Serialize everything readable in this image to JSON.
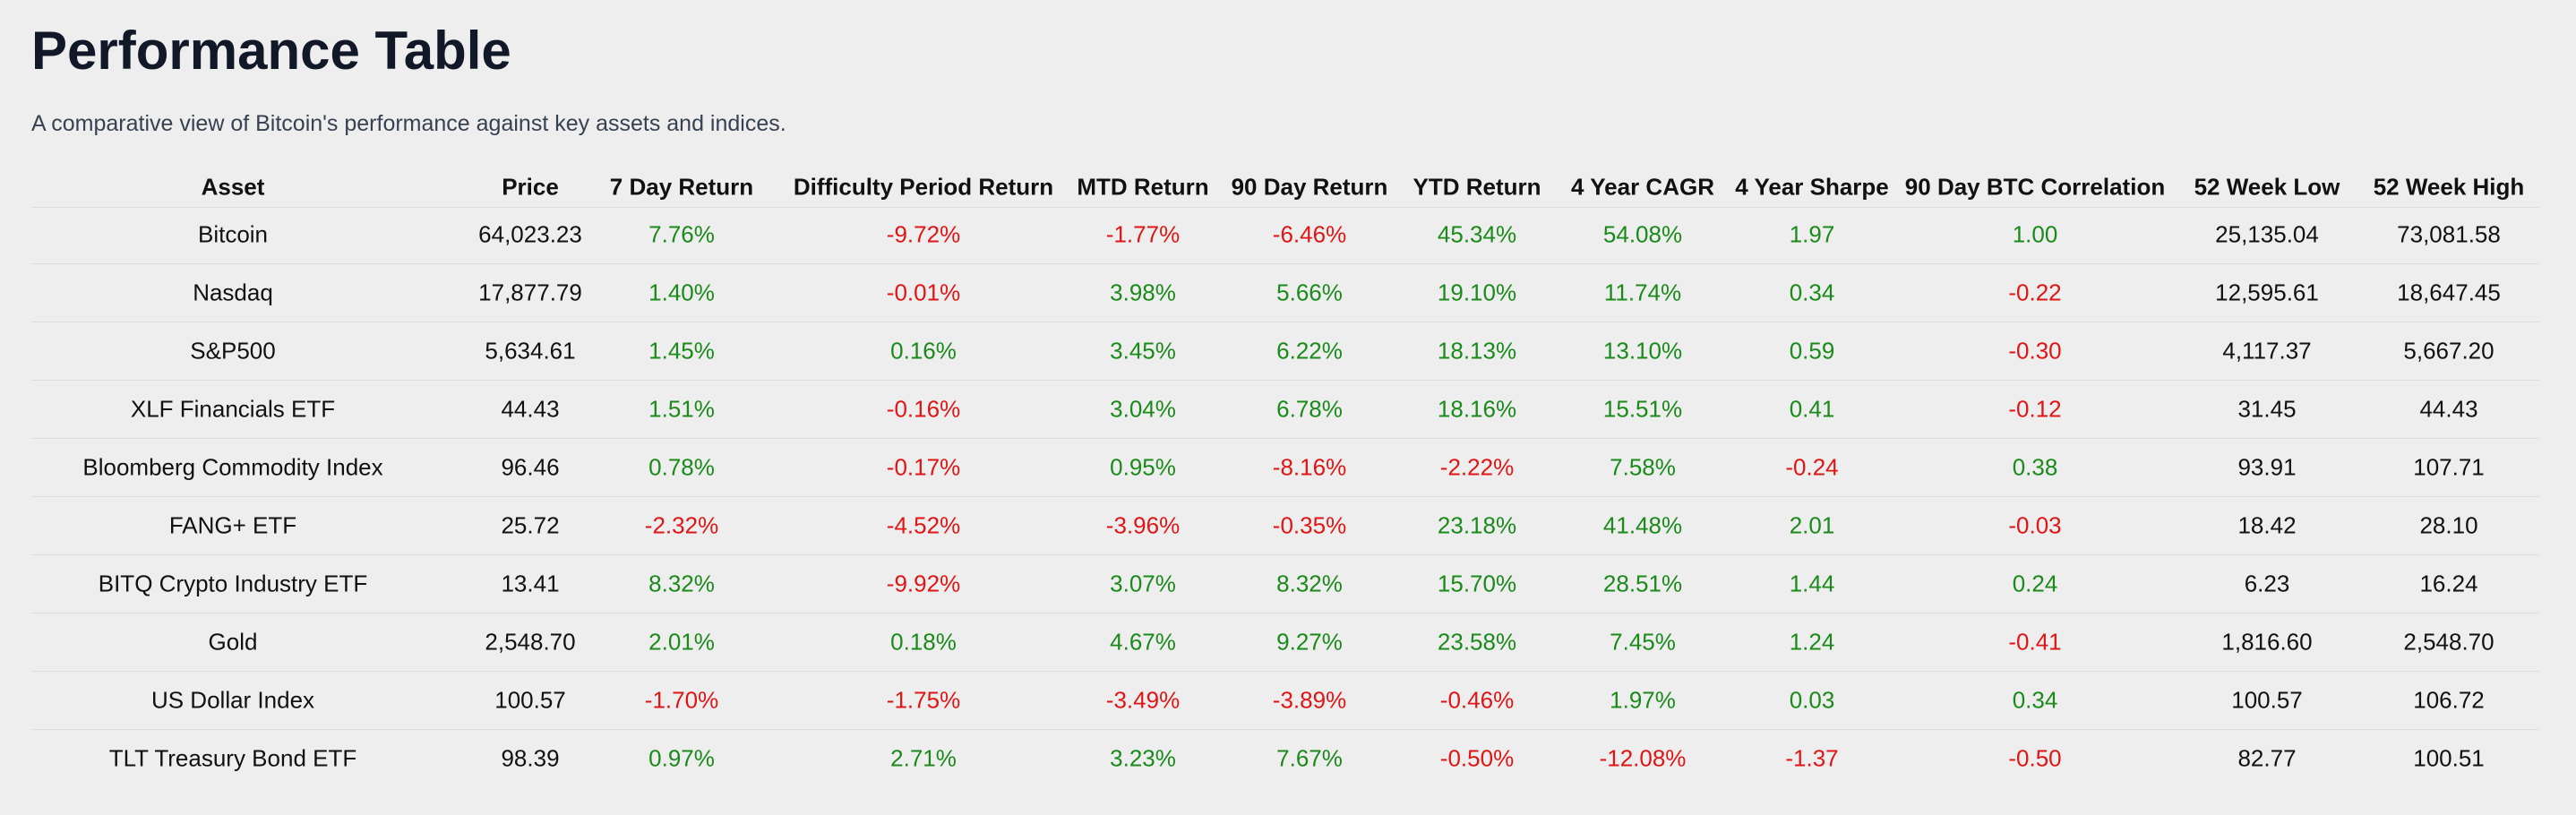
{
  "header": {
    "title": "Performance Table",
    "subtitle": "A comparative view of Bitcoin's performance against key assets and indices."
  },
  "table": {
    "columns": [
      "Asset",
      "Price",
      "7 Day Return",
      "Difficulty Period Return",
      "MTD Return",
      "90 Day Return",
      "YTD Return",
      "4 Year CAGR",
      "4 Year Sharpe",
      "90 Day BTC Correlation",
      "52 Week Low",
      "52 Week High"
    ],
    "rows": [
      [
        "Bitcoin",
        "64,023.23",
        "7.76%",
        "-9.72%",
        "-1.77%",
        "-6.46%",
        "45.34%",
        "54.08%",
        "1.97",
        "1.00",
        "25,135.04",
        "73,081.58"
      ],
      [
        "Nasdaq",
        "17,877.79",
        "1.40%",
        "-0.01%",
        "3.98%",
        "5.66%",
        "19.10%",
        "11.74%",
        "0.34",
        "-0.22",
        "12,595.61",
        "18,647.45"
      ],
      [
        "S&P500",
        "5,634.61",
        "1.45%",
        "0.16%",
        "3.45%",
        "6.22%",
        "18.13%",
        "13.10%",
        "0.59",
        "-0.30",
        "4,117.37",
        "5,667.20"
      ],
      [
        "XLF Financials ETF",
        "44.43",
        "1.51%",
        "-0.16%",
        "3.04%",
        "6.78%",
        "18.16%",
        "15.51%",
        "0.41",
        "-0.12",
        "31.45",
        "44.43"
      ],
      [
        "Bloomberg Commodity Index",
        "96.46",
        "0.78%",
        "-0.17%",
        "0.95%",
        "-8.16%",
        "-2.22%",
        "7.58%",
        "-0.24",
        "0.38",
        "93.91",
        "107.71"
      ],
      [
        "FANG+ ETF",
        "25.72",
        "-2.32%",
        "-4.52%",
        "-3.96%",
        "-0.35%",
        "23.18%",
        "41.48%",
        "2.01",
        "-0.03",
        "18.42",
        "28.10"
      ],
      [
        "BITQ Crypto Industry ETF",
        "13.41",
        "8.32%",
        "-9.92%",
        "3.07%",
        "8.32%",
        "15.70%",
        "28.51%",
        "1.44",
        "0.24",
        "6.23",
        "16.24"
      ],
      [
        "Gold",
        "2,548.70",
        "2.01%",
        "0.18%",
        "4.67%",
        "9.27%",
        "23.58%",
        "7.45%",
        "1.24",
        "-0.41",
        "1,816.60",
        "2,548.70"
      ],
      [
        "US Dollar Index",
        "100.57",
        "-1.70%",
        "-1.75%",
        "-3.49%",
        "-3.89%",
        "-0.46%",
        "1.97%",
        "0.03",
        "0.34",
        "100.57",
        "106.72"
      ],
      [
        "TLT Treasury Bond ETF",
        "98.39",
        "0.97%",
        "2.71%",
        "3.23%",
        "7.67%",
        "-0.50%",
        "-12.08%",
        "-1.37",
        "-0.50",
        "82.77",
        "100.51"
      ]
    ]
  }
}
